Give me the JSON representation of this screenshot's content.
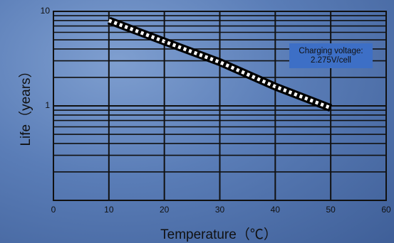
{
  "chart_data": {
    "type": "line",
    "title": "",
    "xlabel": "Temperature（℃）",
    "ylabel": "Life（years）",
    "xlim": [
      0,
      60
    ],
    "ylim": [
      0.1,
      10
    ],
    "yscale": "log",
    "grid": true,
    "x_ticks": [
      0,
      10,
      20,
      30,
      40,
      50,
      60
    ],
    "x_tick_labels": [
      "0",
      "10",
      "20",
      "30",
      "40",
      "50",
      "60"
    ],
    "y_ticks": [
      1,
      10
    ],
    "y_tick_labels": [
      "1",
      "10"
    ],
    "series": [
      {
        "x": [
          10,
          20,
          30,
          40,
          50
        ],
        "y": [
          8.0,
          4.8,
          2.9,
          1.6,
          0.95
        ],
        "band": "hatched",
        "color": "#000000"
      }
    ],
    "annotations": [
      {
        "text": "Charging voltage:",
        "box_color": "#3d6fc6"
      },
      {
        "text": "2.275V/cell",
        "box_color": "#3d6fc6"
      }
    ]
  }
}
